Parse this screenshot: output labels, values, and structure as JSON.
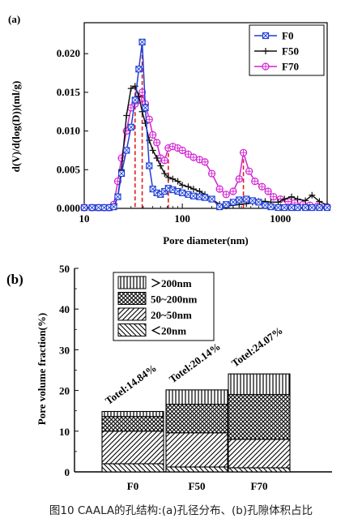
{
  "caption": "图10 CAALA的孔结构:(a)孔径分布、(b)孔隙体积占比",
  "chart_data": [
    {
      "type": "line",
      "panel_label": "(a)",
      "xlabel": "Pore diameter(nm)",
      "ylabel": "d(V)/d(log(D))(ml/g)",
      "x_scale": "log",
      "xlim": [
        10,
        3000
      ],
      "ylim": [
        0,
        0.024
      ],
      "x_ticks": [
        10,
        100,
        1000
      ],
      "x_tick_labels": [
        "10",
        "100",
        "1000"
      ],
      "y_ticks": [
        0,
        0.005,
        0.01,
        0.015,
        0.02
      ],
      "y_tick_labels": [
        "0.000",
        "0.005",
        "0.010",
        "0.015",
        "0.020"
      ],
      "legend_position": "top-right",
      "series": [
        {
          "name": "F0",
          "color": "#1f3fd6",
          "marker": "square-x",
          "x": [
            10,
            12,
            14,
            16,
            18,
            20,
            22,
            24,
            27,
            30,
            33,
            36,
            39,
            42,
            46,
            50,
            55,
            60,
            66,
            72,
            80,
            90,
            100,
            115,
            130,
            150,
            170,
            200,
            240,
            280,
            330,
            380,
            450,
            520,
            600,
            700,
            800,
            950,
            1100,
            1300,
            1500,
            1800,
            2100,
            2500,
            3000
          ],
          "y": [
            0.0001,
            0.0001,
            0.0001,
            0.0001,
            0.0001,
            0.0002,
            0.0015,
            0.0045,
            0.0075,
            0.0105,
            0.014,
            0.018,
            0.0215,
            0.013,
            0.0055,
            0.0025,
            0.002,
            0.0018,
            0.0022,
            0.0026,
            0.0024,
            0.0022,
            0.002,
            0.0018,
            0.0016,
            0.0015,
            0.0014,
            0.0012,
            0.0002,
            0.0005,
            0.0008,
            0.0011,
            0.0012,
            0.001,
            0.0008,
            0.0004,
            0.0002,
            0.0001,
            0.0001,
            0.0001,
            0.0001,
            0.0001,
            0.0001,
            0.0001,
            0.0001
          ]
        },
        {
          "name": "F50",
          "color": "#111111",
          "marker": "plus",
          "x": [
            10,
            12,
            14,
            16,
            18,
            20,
            22,
            24,
            27,
            30,
            33,
            36,
            39,
            42,
            46,
            50,
            55,
            60,
            66,
            72,
            80,
            90,
            100,
            115,
            130,
            150,
            170,
            200,
            240,
            280,
            330,
            380,
            450,
            520,
            600,
            700,
            800,
            950,
            1100,
            1300,
            1500,
            1800,
            2100,
            2500,
            3000
          ],
          "y": [
            0.0001,
            0.0001,
            0.0001,
            0.0001,
            0.0001,
            0.0002,
            0.0015,
            0.005,
            0.012,
            0.0155,
            0.0158,
            0.0145,
            0.0125,
            0.011,
            0.0088,
            0.0075,
            0.0065,
            0.0055,
            0.0045,
            0.004,
            0.0038,
            0.0035,
            0.003,
            0.0028,
            0.0025,
            0.0022,
            0.0018,
            0.0012,
            0.0005,
            0.0003,
            0.0004,
            0.0005,
            0.0006,
            0.0008,
            0.0009,
            0.0009,
            0.0008,
            0.0008,
            0.0012,
            0.0015,
            0.0012,
            0.001,
            0.0017,
            0.0009,
            0.0004
          ]
        },
        {
          "name": "F70",
          "color": "#d321d3",
          "marker": "circle-plus",
          "x": [
            10,
            12,
            14,
            16,
            18,
            20,
            22,
            24,
            27,
            30,
            33,
            36,
            39,
            42,
            46,
            50,
            55,
            60,
            66,
            72,
            80,
            90,
            100,
            115,
            130,
            150,
            170,
            200,
            240,
            280,
            330,
            380,
            420,
            480,
            550,
            650,
            750,
            850,
            1000,
            1200,
            1400,
            1700,
            2000,
            2400,
            3000
          ],
          "y": [
            0.0001,
            0.0001,
            0.0001,
            0.0001,
            0.0001,
            0.0005,
            0.0035,
            0.0065,
            0.01,
            0.013,
            0.0135,
            0.014,
            0.015,
            0.0135,
            0.0115,
            0.0095,
            0.0085,
            0.0065,
            0.0062,
            0.0078,
            0.008,
            0.0078,
            0.0075,
            0.007,
            0.0066,
            0.0063,
            0.006,
            0.0045,
            0.0025,
            0.0018,
            0.0022,
            0.0038,
            0.0072,
            0.0048,
            0.0035,
            0.0028,
            0.0022,
            0.0015,
            0.0012,
            0.0009,
            0.0007,
            0.0005,
            0.0004,
            0.0003,
            0.0002
          ]
        }
      ],
      "dashed_peak_markers": [
        {
          "x": 33,
          "y": 0.0158
        },
        {
          "x": 39,
          "y": 0.0215
        },
        {
          "x": 72,
          "y": 0.008
        },
        {
          "x": 420,
          "y": 0.0072
        }
      ]
    },
    {
      "type": "bar",
      "stacked": true,
      "panel_label": "(b)",
      "ylabel": "Pore volume fraction(%)",
      "ylim": [
        0,
        50
      ],
      "y_ticks": [
        0,
        10,
        20,
        30,
        40,
        50
      ],
      "y_tick_labels": [
        "0",
        "10",
        "20",
        "30",
        "40",
        "50"
      ],
      "categories": [
        "F0",
        "F50",
        "F70"
      ],
      "series": [
        {
          "name": "<20nm",
          "pattern": "diagonal-down",
          "values": [
            2.0,
            1.2,
            1.0
          ]
        },
        {
          "name": "20~50nm",
          "pattern": "diagonal-up",
          "values": [
            8.0,
            8.4,
            7.0
          ]
        },
        {
          "name": "50~200nm",
          "pattern": "crosshatch",
          "values": [
            3.6,
            7.0,
            11.0
          ]
        },
        {
          "name": ">200nm",
          "pattern": "vertical",
          "values": [
            1.24,
            3.54,
            5.07
          ]
        }
      ],
      "legend_order": [
        ">200nm",
        "50~200nm",
        "20~50nm",
        "<20nm"
      ],
      "legend_labels": [
        "＞200nm",
        "50~200nm",
        "20~50nm",
        "＜20nm"
      ],
      "legend_position": "top-left",
      "annotations": [
        "Totel:14.84%",
        "Totel:20.14%",
        "Totel:24.07%"
      ],
      "totals": [
        14.84,
        20.14,
        24.07
      ]
    }
  ]
}
